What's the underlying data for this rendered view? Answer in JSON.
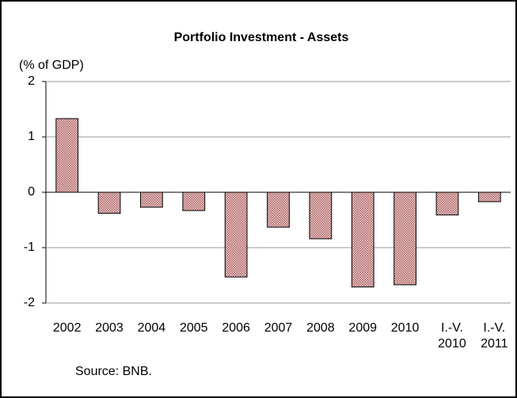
{
  "chart_data": {
    "type": "bar",
    "title": "Portfolio Investment - Assets",
    "y_label": "(% of GDP)",
    "source": "Source: BNB.",
    "categories": [
      "2002",
      "2003",
      "2004",
      "2005",
      "2006",
      "2007",
      "2008",
      "2009",
      "2010",
      "I.-V.\n2010",
      "I.-V.\n2011"
    ],
    "values": [
      1.33,
      -0.38,
      -0.27,
      -0.33,
      -1.53,
      -0.63,
      -0.84,
      -1.71,
      -1.67,
      -0.41,
      -0.17
    ],
    "color": "#c98b8b",
    "ylim": [
      -2,
      2
    ],
    "yticks": [
      -2,
      -1,
      0,
      1,
      2
    ],
    "grid": true
  }
}
